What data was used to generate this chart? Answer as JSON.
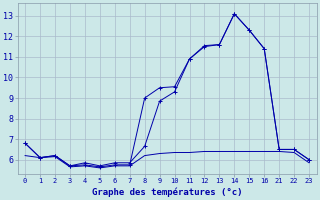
{
  "title": "Graphe des températures (°c)",
  "background_color": "#cce8e8",
  "grid_color": "#aabbcc",
  "line_color": "#0000aa",
  "ylim": [
    5.3,
    13.6
  ],
  "yticks": [
    6,
    7,
    8,
    9,
    10,
    11,
    12,
    13
  ],
  "x_positions": [
    0,
    1,
    2,
    3,
    4,
    5,
    6,
    7,
    8,
    9,
    10,
    11,
    12,
    13,
    14,
    15,
    16,
    17,
    18,
    19
  ],
  "x_labels": [
    "0",
    "1",
    "2",
    "3",
    "4",
    "5",
    "6",
    "7",
    "8",
    "9",
    "10",
    "11",
    "12",
    "13",
    "14",
    "15",
    "16",
    "21",
    "22",
    "23"
  ],
  "line1_pos": [
    0,
    1,
    2,
    3,
    4,
    5,
    6,
    7,
    8,
    9,
    10,
    11,
    12,
    13,
    14,
    15,
    16,
    17,
    18,
    19
  ],
  "line1_y": [
    6.8,
    6.1,
    6.2,
    5.7,
    5.85,
    5.7,
    5.85,
    5.85,
    6.65,
    8.85,
    9.3,
    10.9,
    11.5,
    11.6,
    13.1,
    12.3,
    11.4,
    6.5,
    6.5,
    6.0
  ],
  "line2_pos": [
    0,
    1,
    2,
    3,
    4,
    5,
    6,
    7,
    8,
    9,
    10,
    11,
    12,
    13,
    14,
    15,
    16,
    17,
    18,
    19
  ],
  "line2_y": [
    6.8,
    6.1,
    6.2,
    5.7,
    5.75,
    5.65,
    5.75,
    5.75,
    9.0,
    9.5,
    9.55,
    10.9,
    11.55,
    11.6,
    13.1,
    12.3,
    11.4,
    6.5,
    6.5,
    6.0
  ],
  "line3_pos": [
    0,
    1,
    2,
    3,
    4,
    5,
    6,
    7,
    8,
    9,
    10,
    11,
    12,
    13,
    14,
    15,
    16,
    17,
    18,
    19
  ],
  "line3_y": [
    6.2,
    6.1,
    6.15,
    5.65,
    5.7,
    5.6,
    5.7,
    5.7,
    6.2,
    6.3,
    6.35,
    6.35,
    6.4,
    6.4,
    6.4,
    6.4,
    6.4,
    6.4,
    6.35,
    5.85
  ],
  "xlim": [
    -0.5,
    19.5
  ],
  "figsize": [
    3.2,
    2.0
  ],
  "dpi": 100
}
